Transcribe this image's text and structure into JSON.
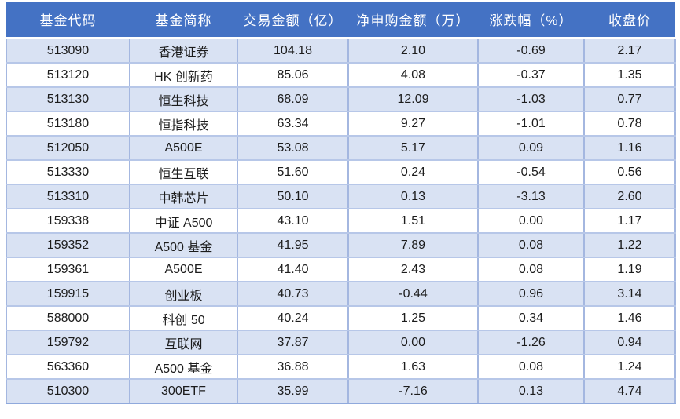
{
  "page": {
    "background": "#FFFFFF"
  },
  "colors": {
    "header_bg": "#4472C4",
    "header_text": "#FFFFFF",
    "banded_row_bg": "#D9E2F3",
    "plain_row_bg": "#FFFFFF",
    "vertical_grid": "#A4B7E0",
    "horizontal_grid": "#B7C7E8",
    "outer_bottom_border": "#8FA9DC",
    "body_text": "#1C1C1C"
  },
  "table": {
    "columns": [
      "基金代码",
      "基金简称",
      "交易金额（亿）",
      "净申购金额（万）",
      "涨跌幅（%）",
      "收盘价"
    ],
    "rows": [
      [
        "513090",
        "香港证券",
        "104.18",
        "2.10",
        "-0.69",
        "2.17"
      ],
      [
        "513120",
        "HK 创新药",
        "85.06",
        "4.08",
        "-0.37",
        "1.35"
      ],
      [
        "513130",
        "恒生科技",
        "68.09",
        "12.09",
        "-1.03",
        "0.77"
      ],
      [
        "513180",
        "恒指科技",
        "63.34",
        "9.27",
        "-1.01",
        "0.78"
      ],
      [
        "512050",
        "A500E",
        "53.08",
        "5.17",
        "0.09",
        "1.16"
      ],
      [
        "513330",
        "恒生互联",
        "51.60",
        "0.24",
        "-0.54",
        "0.56"
      ],
      [
        "513310",
        "中韩芯片",
        "50.10",
        "0.13",
        "-3.13",
        "2.60"
      ],
      [
        "159338",
        "中证 A500",
        "43.10",
        "1.51",
        "0.00",
        "1.17"
      ],
      [
        "159352",
        "A500 基金",
        "41.95",
        "7.89",
        "0.08",
        "1.22"
      ],
      [
        "159361",
        "A500E",
        "41.40",
        "2.43",
        "0.08",
        "1.19"
      ],
      [
        "159915",
        "创业板",
        "40.73",
        "-0.44",
        "0.96",
        "3.14"
      ],
      [
        "588000",
        "科创 50",
        "40.24",
        "1.25",
        "0.34",
        "1.46"
      ],
      [
        "159792",
        "互联网",
        "37.87",
        "0.00",
        "-1.26",
        "0.94"
      ],
      [
        "563360",
        "A500 基金",
        "36.88",
        "1.63",
        "0.08",
        "1.24"
      ],
      [
        "510300",
        "300ETF",
        "35.99",
        "-7.16",
        "0.13",
        "4.74"
      ]
    ]
  },
  "chart_data": {
    "type": "table",
    "columns": [
      "基金代码",
      "基金简称",
      "交易金额（亿）",
      "净申购金额（万）",
      "涨跌幅（%）",
      "收盘价"
    ],
    "rows": [
      [
        "513090",
        "香港证券",
        104.18,
        2.1,
        -0.69,
        2.17
      ],
      [
        "513120",
        "HK 创新药",
        85.06,
        4.08,
        -0.37,
        1.35
      ],
      [
        "513130",
        "恒生科技",
        68.09,
        12.09,
        -1.03,
        0.77
      ],
      [
        "513180",
        "恒指科技",
        63.34,
        9.27,
        -1.01,
        0.78
      ],
      [
        "512050",
        "A500E",
        53.08,
        5.17,
        0.09,
        1.16
      ],
      [
        "513330",
        "恒生互联",
        51.6,
        0.24,
        -0.54,
        0.56
      ],
      [
        "513310",
        "中韩芯片",
        50.1,
        0.13,
        -3.13,
        2.6
      ],
      [
        "159338",
        "中证 A500",
        43.1,
        1.51,
        0.0,
        1.17
      ],
      [
        "159352",
        "A500 基金",
        41.95,
        7.89,
        0.08,
        1.22
      ],
      [
        "159361",
        "A500E",
        41.4,
        2.43,
        0.08,
        1.19
      ],
      [
        "159915",
        "创业板",
        40.73,
        -0.44,
        0.96,
        3.14
      ],
      [
        "588000",
        "科创 50",
        40.24,
        1.25,
        0.34,
        1.46
      ],
      [
        "159792",
        "互联网",
        37.87,
        0.0,
        -1.26,
        0.94
      ],
      [
        "563360",
        "A500 基金",
        36.88,
        1.63,
        0.08,
        1.24
      ],
      [
        "510300",
        "300ETF",
        35.99,
        -7.16,
        0.13,
        4.74
      ]
    ],
    "layout": {
      "header_style": "solid-blue-band",
      "row_banding": "odd-rows-light-blue",
      "cell_alignment": "center"
    }
  }
}
